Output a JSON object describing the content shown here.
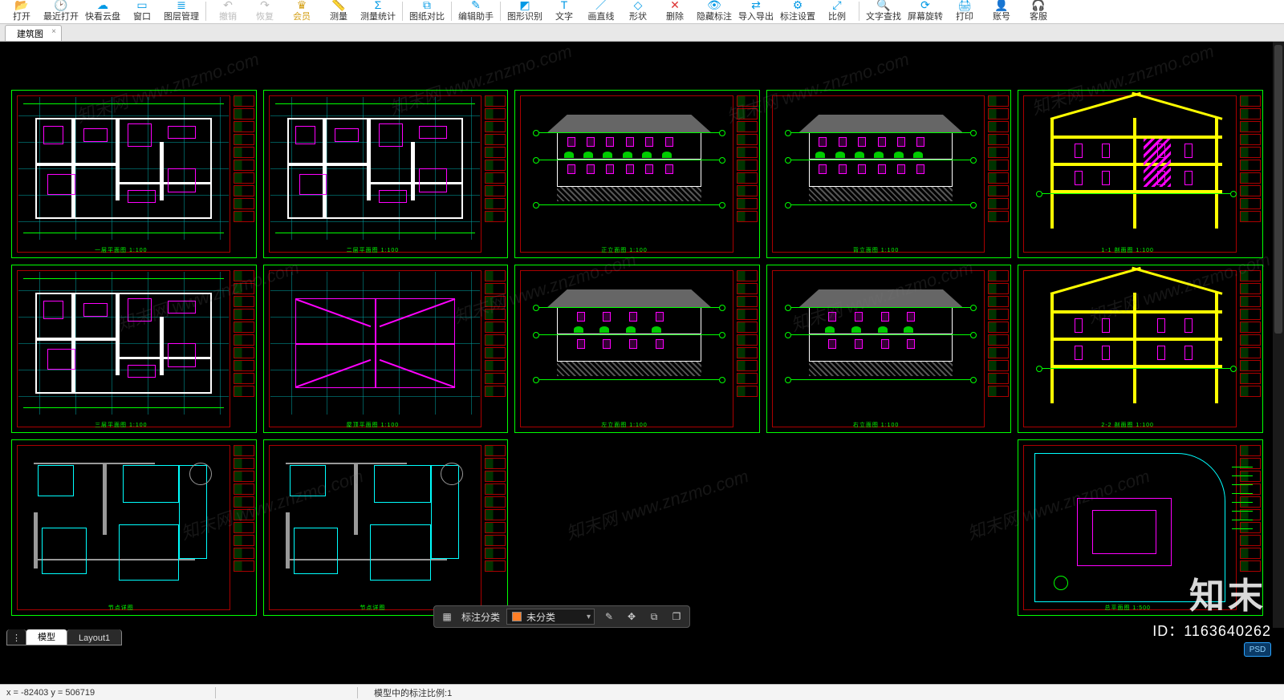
{
  "toolbar": {
    "items": [
      {
        "label": "打开",
        "icon": "📂",
        "color": "#0099e5"
      },
      {
        "label": "最近打开",
        "icon": "🕑",
        "color": "#0099e5"
      },
      {
        "label": "快看云盘",
        "icon": "☁",
        "color": "#0099e5"
      },
      {
        "label": "窗口",
        "icon": "▭",
        "color": "#0099e5"
      },
      {
        "label": "图层管理",
        "icon": "≣",
        "color": "#0099e5"
      },
      {
        "sep": true
      },
      {
        "label": "撤销",
        "icon": "↶",
        "disabled": true
      },
      {
        "label": "恢复",
        "icon": "↷",
        "disabled": true
      },
      {
        "label": "会员",
        "icon": "♛",
        "gold": true
      },
      {
        "label": "测量",
        "icon": "📏",
        "color": "#0099e5"
      },
      {
        "label": "测量统计",
        "icon": "Σ",
        "color": "#0099e5"
      },
      {
        "sep": true
      },
      {
        "label": "图纸对比",
        "icon": "⧉",
        "color": "#0099e5"
      },
      {
        "sep": true
      },
      {
        "label": "编辑助手",
        "icon": "✎",
        "color": "#0099e5"
      },
      {
        "sep": true
      },
      {
        "label": "图形识别",
        "icon": "◩",
        "color": "#0099e5"
      },
      {
        "label": "文字",
        "icon": "T",
        "color": "#0099e5"
      },
      {
        "label": "画直线",
        "icon": "／",
        "color": "#0099e5"
      },
      {
        "label": "形状",
        "icon": "◇",
        "color": "#0099e5"
      },
      {
        "label": "删除",
        "icon": "✕",
        "color": "#d33"
      },
      {
        "label": "隐藏标注",
        "icon": "👁",
        "color": "#0099e5"
      },
      {
        "label": "导入导出",
        "icon": "⇄",
        "color": "#0099e5"
      },
      {
        "label": "标注设置",
        "icon": "⚙",
        "color": "#0099e5"
      },
      {
        "label": "比例",
        "icon": "⤢",
        "color": "#0099e5"
      },
      {
        "sep": true
      },
      {
        "label": "文字查找",
        "icon": "🔍",
        "color": "#0099e5"
      },
      {
        "label": "屏幕旋转",
        "icon": "⟳",
        "color": "#0099e5"
      },
      {
        "label": "打印",
        "icon": "🖨",
        "color": "#0099e5"
      },
      {
        "label": "账号",
        "icon": "👤",
        "color": "#0099e5"
      },
      {
        "label": "客服",
        "icon": "🎧",
        "color": "#0099e5"
      }
    ]
  },
  "doc_tab": {
    "title": "建筑图",
    "close": "×"
  },
  "watermark": "知末网 www.znzmo.com",
  "annot_bar": {
    "category_label": "标注分类",
    "selected": "未分类",
    "swatch_color": "#ff7f27"
  },
  "layout_tabs": {
    "model": "模型",
    "layouts": [
      "Layout1"
    ]
  },
  "status": {
    "coords_prefix_x": "x = ",
    "coords_x": "-82403",
    "coords_prefix_y": "  y = ",
    "coords_y": "506719",
    "scale_label": "模型中的标注比例:",
    "scale_value": "1"
  },
  "brand": "知末",
  "asset_id": "ID：1163640262",
  "psd": "PSD",
  "colors": {
    "canvas_bg": "#000000",
    "frame_green": "#00ff00",
    "frame_red": "#aa0000",
    "magenta": "#ff00ff",
    "cyan": "#00ffff",
    "yellow": "#ffff00",
    "grey": "#888888",
    "white": "#ffffff"
  },
  "sheets": {
    "rows": 3,
    "cols": 5,
    "blank_cells": [
      [
        2,
        2
      ],
      [
        2,
        3
      ]
    ],
    "captions": [
      "一层平面图 1:100",
      "二层平面图 1:100",
      "正立面图 1:100",
      "背立面图 1:100",
      "1-1 剖面图 1:100",
      "三层平面图 1:100",
      "屋顶平面图 1:100",
      "左立面图 1:100",
      "右立面图 1:100",
      "2-2 剖面图 1:100",
      "节点详图",
      "节点详图",
      "",
      "",
      "总平面图 1:500"
    ],
    "kinds": [
      "plan",
      "plan",
      "elev-front",
      "elev-rear",
      "section",
      "plan",
      "roof",
      "elev-side",
      "elev-side",
      "section2",
      "detail",
      "detail",
      "blank",
      "blank",
      "site"
    ]
  }
}
